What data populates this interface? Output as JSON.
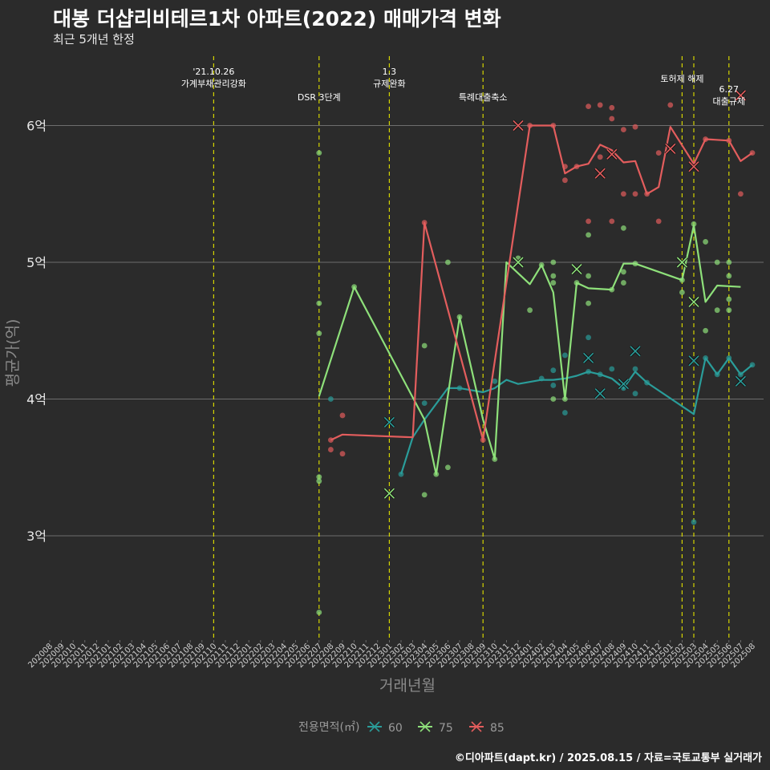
{
  "header": {
    "title": "대봉 더샵리비테르1차 아파트(2022) 매매가격 변화",
    "subtitle": "최근 5개년 한정"
  },
  "footer": {
    "caption": "©디아파트(dapt.kr) / 2025.08.15 / 자료=국토교통부 실거래가"
  },
  "colors": {
    "background": "#2b2b2b",
    "grid": "#6e6e6e",
    "vline": "#d4d400",
    "s60": "#2a9d9a",
    "s75": "#8ee07a",
    "s85": "#e35d5d"
  },
  "chart_data": {
    "type": "line",
    "title": "대봉 더샵리비테르1차 아파트(2022) 매매가격 변화",
    "subtitle": "최근 5개년 한정",
    "xlabel": "거래년월",
    "ylabel": "평균가(억)",
    "ylim": [
      2.25,
      6.5
    ],
    "yticks": [
      {
        "v": 3,
        "label": "3억"
      },
      {
        "v": 4,
        "label": "4억"
      },
      {
        "v": 5,
        "label": "5억"
      },
      {
        "v": 6,
        "label": "6억"
      }
    ],
    "x_categories": [
      "202008",
      "202009",
      "202010",
      "202011",
      "202012",
      "202101",
      "202102",
      "202103",
      "202104",
      "202105",
      "202106",
      "202107",
      "202108",
      "202109",
      "202110",
      "202111",
      "202112",
      "202201",
      "202202",
      "202203",
      "202204",
      "202205",
      "202206",
      "202207",
      "202208",
      "202209",
      "202210",
      "202211",
      "202212",
      "202301",
      "202302",
      "202303",
      "202304",
      "202305",
      "202306",
      "202307",
      "202308",
      "202309",
      "202310",
      "202311",
      "202312",
      "202401",
      "202402",
      "202403",
      "202404",
      "202405",
      "202406",
      "202407",
      "202408",
      "202409",
      "202410",
      "202411",
      "202412",
      "202501",
      "202502",
      "202503",
      "202504",
      "202505",
      "202506",
      "202507",
      "202508"
    ],
    "legend": {
      "title": "전용면적(㎡)",
      "position": "bottom"
    },
    "grid": true,
    "events": [
      {
        "x": 14.0,
        "lines": [
          "'21.10.26",
          "가계부채관리강화"
        ],
        "row": "high"
      },
      {
        "x": 23.0,
        "lines": [
          "DSR 3단계"
        ],
        "row": "low"
      },
      {
        "x": 29.0,
        "lines": [
          "1.3",
          "규제완화"
        ],
        "row": "high"
      },
      {
        "x": 37.0,
        "lines": [
          "특례대출축소"
        ],
        "row": "low"
      },
      {
        "x": 54.0,
        "lines": [
          "토허제 해제"
        ],
        "row": "mid"
      },
      {
        "x": 55.0,
        "lines": [],
        "row": "none"
      },
      {
        "x": 58.0,
        "lines": [
          "6.27",
          "대출규제"
        ],
        "row": "low2"
      }
    ],
    "series": [
      {
        "name": "60",
        "color": "#2a9d9a",
        "line": [
          [
            30,
            3.45
          ],
          [
            31,
            3.72
          ],
          [
            32,
            3.85
          ],
          [
            34,
            4.08
          ],
          [
            35,
            4.08
          ],
          [
            37,
            4.05
          ],
          [
            38,
            4.08
          ],
          [
            39,
            4.14
          ],
          [
            40,
            4.11
          ],
          [
            42,
            4.14
          ],
          [
            43,
            4.14
          ],
          [
            44,
            4.15
          ],
          [
            45,
            4.17
          ],
          [
            46,
            4.2
          ],
          [
            47,
            4.18
          ],
          [
            48,
            4.15
          ],
          [
            49,
            4.08
          ],
          [
            50,
            4.2
          ],
          [
            51,
            4.12
          ],
          [
            55,
            3.89
          ],
          [
            56,
            4.3
          ],
          [
            57,
            4.18
          ],
          [
            58,
            4.3
          ],
          [
            59,
            4.18
          ],
          [
            60,
            4.25
          ]
        ],
        "points": [
          [
            24,
            4.0
          ],
          [
            30,
            3.45
          ],
          [
            32,
            3.97
          ],
          [
            35,
            4.08
          ],
          [
            38,
            4.13
          ],
          [
            42,
            4.15
          ],
          [
            43,
            4.1
          ],
          [
            43,
            4.21
          ],
          [
            44,
            4.32
          ],
          [
            44,
            3.9
          ],
          [
            46,
            4.2
          ],
          [
            46,
            4.45
          ],
          [
            47,
            4.18
          ],
          [
            48,
            4.22
          ],
          [
            49,
            4.08
          ],
          [
            50,
            4.22
          ],
          [
            50,
            4.04
          ],
          [
            51,
            4.12
          ],
          [
            55,
            3.1
          ],
          [
            56,
            4.3
          ],
          [
            57,
            4.18
          ],
          [
            58,
            4.3
          ],
          [
            59,
            4.18
          ],
          [
            60,
            4.25
          ]
        ],
        "crosses": [
          [
            29,
            3.83
          ],
          [
            46,
            4.3
          ],
          [
            47,
            4.04
          ],
          [
            49,
            4.11
          ],
          [
            50,
            4.35
          ],
          [
            55,
            4.28
          ],
          [
            59,
            4.13
          ]
        ]
      },
      {
        "name": "75",
        "color": "#8ee07a",
        "line": [
          [
            23,
            4.02
          ],
          [
            26,
            4.82
          ],
          [
            32,
            3.85
          ],
          [
            33,
            3.45
          ],
          [
            35,
            4.6
          ],
          [
            37,
            3.85
          ],
          [
            38,
            3.56
          ],
          [
            39,
            5.0
          ],
          [
            41,
            4.84
          ],
          [
            42,
            4.98
          ],
          [
            43,
            4.78
          ],
          [
            44,
            4.0
          ],
          [
            45,
            4.85
          ],
          [
            46,
            4.81
          ],
          [
            48,
            4.8
          ],
          [
            49,
            4.99
          ],
          [
            50,
            4.99
          ],
          [
            54,
            4.87
          ],
          [
            55,
            5.27
          ],
          [
            56,
            4.71
          ],
          [
            57,
            4.83
          ],
          [
            59,
            4.82
          ]
        ],
        "points": [
          [
            23,
            5.8
          ],
          [
            23,
            4.7
          ],
          [
            23,
            4.48
          ],
          [
            23,
            3.43
          ],
          [
            23,
            3.4
          ],
          [
            23,
            2.44
          ],
          [
            26,
            4.82
          ],
          [
            32,
            4.39
          ],
          [
            32,
            3.3
          ],
          [
            33,
            3.45
          ],
          [
            34,
            3.5
          ],
          [
            34,
            5.0
          ],
          [
            35,
            4.6
          ],
          [
            38,
            3.56
          ],
          [
            40,
            5.03
          ],
          [
            41,
            4.65
          ],
          [
            42,
            4.98
          ],
          [
            43,
            5.0
          ],
          [
            43,
            4.9
          ],
          [
            43,
            4.85
          ],
          [
            43,
            4.0
          ],
          [
            44,
            4.0
          ],
          [
            45,
            4.85
          ],
          [
            46,
            5.2
          ],
          [
            46,
            4.9
          ],
          [
            46,
            4.7
          ],
          [
            48,
            4.8
          ],
          [
            49,
            5.25
          ],
          [
            49,
            4.93
          ],
          [
            49,
            4.85
          ],
          [
            50,
            4.99
          ],
          [
            54,
            4.87
          ],
          [
            54,
            4.78
          ],
          [
            55,
            5.28
          ],
          [
            56,
            5.15
          ],
          [
            56,
            4.5
          ],
          [
            57,
            5.0
          ],
          [
            57,
            4.65
          ],
          [
            58,
            5.0
          ],
          [
            58,
            4.9
          ],
          [
            58,
            4.73
          ],
          [
            58,
            4.65
          ]
        ],
        "crosses": [
          [
            29,
            3.31
          ],
          [
            40,
            5.0
          ],
          [
            45,
            4.95
          ],
          [
            54,
            5.0
          ],
          [
            55,
            4.71
          ]
        ]
      },
      {
        "name": "85",
        "color": "#e35d5d",
        "line": [
          [
            24,
            3.7
          ],
          [
            25,
            3.74
          ],
          [
            31,
            3.72
          ],
          [
            32,
            5.29
          ],
          [
            37,
            3.7
          ],
          [
            41,
            6.0
          ],
          [
            43,
            6.0
          ],
          [
            44,
            5.65
          ],
          [
            45,
            5.7
          ],
          [
            46,
            5.72
          ],
          [
            47,
            5.86
          ],
          [
            48,
            5.82
          ],
          [
            49,
            5.73
          ],
          [
            50,
            5.74
          ],
          [
            51,
            5.5
          ],
          [
            52,
            5.55
          ],
          [
            53,
            5.99
          ],
          [
            55,
            5.72
          ],
          [
            56,
            5.9
          ],
          [
            58,
            5.89
          ],
          [
            59,
            5.74
          ],
          [
            60,
            5.8
          ]
        ],
        "points": [
          [
            24,
            3.7
          ],
          [
            24,
            3.63
          ],
          [
            25,
            3.88
          ],
          [
            25,
            3.6
          ],
          [
            32,
            5.29
          ],
          [
            37,
            3.7
          ],
          [
            41,
            6.0
          ],
          [
            43,
            6.0
          ],
          [
            44,
            5.7
          ],
          [
            44,
            5.6
          ],
          [
            45,
            5.7
          ],
          [
            46,
            6.14
          ],
          [
            46,
            5.3
          ],
          [
            47,
            6.15
          ],
          [
            47,
            5.77
          ],
          [
            48,
            6.13
          ],
          [
            48,
            6.05
          ],
          [
            48,
            5.3
          ],
          [
            49,
            5.97
          ],
          [
            49,
            5.5
          ],
          [
            50,
            5.99
          ],
          [
            50,
            5.5
          ],
          [
            51,
            5.5
          ],
          [
            52,
            5.8
          ],
          [
            52,
            5.3
          ],
          [
            53,
            6.15
          ],
          [
            55,
            5.72
          ],
          [
            56,
            5.9
          ],
          [
            58,
            5.89
          ],
          [
            59,
            5.5
          ],
          [
            60,
            5.8
          ]
        ],
        "crosses": [
          [
            40,
            6.0
          ],
          [
            47,
            5.65
          ],
          [
            48,
            5.79
          ],
          [
            53,
            5.83
          ],
          [
            55,
            5.7
          ],
          [
            59,
            6.22
          ]
        ]
      }
    ]
  }
}
